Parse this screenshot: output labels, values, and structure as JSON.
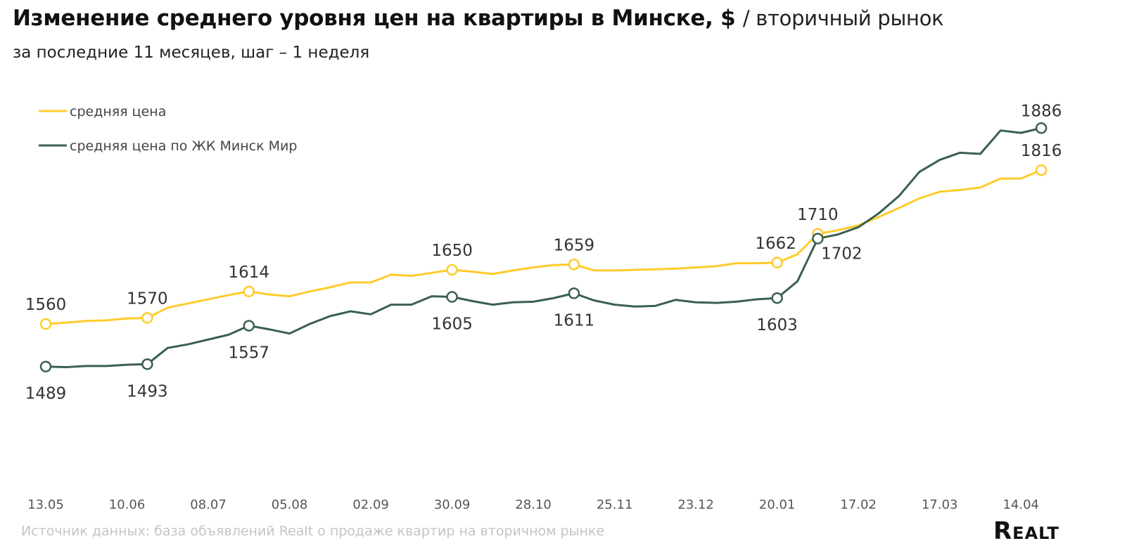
{
  "title": "Изменение среднего уровня цен на квартиры в Минске, $",
  "title_suffix": "/ вторичный рынок",
  "subtitle": "за последние 11 месяцев, шаг – 1 неделя",
  "source": "Источник данных: база объявлений Realt о продаже квартир на вторичном рынке",
  "logo": "Realt",
  "chart_data": {
    "type": "line",
    "grid": false,
    "legend_placement": "top-left",
    "x_ticks": [
      "13.05",
      "10.06",
      "08.07",
      "05.08",
      "02.09",
      "30.09",
      "28.10",
      "25.11",
      "23.12",
      "20.01",
      "17.02",
      "17.03",
      "14.04"
    ],
    "x_step": "1 неделя",
    "ylim": [
      1400,
      1900
    ],
    "series": [
      {
        "name": "средняя цена",
        "color": "#ffcb2b",
        "label_position": "above",
        "values": [
          1560,
          1562,
          1565,
          1566,
          1569,
          1570,
          1587,
          1594,
          1601,
          1608,
          1614,
          1609,
          1606,
          1614,
          1621,
          1629,
          1629,
          1642,
          1640,
          1645,
          1650,
          1647,
          1643,
          1649,
          1654,
          1658,
          1659,
          1649,
          1649,
          1650,
          1651,
          1652,
          1654,
          1656,
          1661,
          1661,
          1662,
          1676,
          1710,
          1716,
          1724,
          1738,
          1753,
          1769,
          1780,
          1783,
          1787,
          1802,
          1802,
          1816
        ],
        "labeled": [
          {
            "i": 0,
            "text": "1560"
          },
          {
            "i": 5,
            "text": "1570"
          },
          {
            "i": 10,
            "text": "1614"
          },
          {
            "i": 20,
            "text": "1650"
          },
          {
            "i": 26,
            "text": "1659"
          },
          {
            "i": 36,
            "text": "1662"
          },
          {
            "i": 38,
            "text": "1710"
          },
          {
            "i": 49,
            "text": "1816"
          }
        ]
      },
      {
        "name": "средняя цена по ЖК Минск Мир",
        "color": "#3a5f50",
        "label_position": "below",
        "values": [
          1489,
          1488,
          1490,
          1490,
          1492,
          1493,
          1520,
          1526,
          1534,
          1542,
          1557,
          1551,
          1544,
          1560,
          1573,
          1581,
          1576,
          1592,
          1592,
          1606,
          1605,
          1598,
          1592,
          1596,
          1597,
          1603,
          1611,
          1599,
          1592,
          1589,
          1590,
          1600,
          1596,
          1595,
          1597,
          1601,
          1603,
          1631,
          1702,
          1709,
          1721,
          1744,
          1773,
          1813,
          1833,
          1845,
          1843,
          1882,
          1878,
          1886
        ],
        "labeled": [
          {
            "i": 0,
            "text": "1489"
          },
          {
            "i": 5,
            "text": "1493"
          },
          {
            "i": 10,
            "text": "1557"
          },
          {
            "i": 20,
            "text": "1605"
          },
          {
            "i": 26,
            "text": "1611"
          },
          {
            "i": 36,
            "text": "1603"
          },
          {
            "i": 38,
            "text": "1702"
          },
          {
            "i": 49,
            "text": "1886"
          }
        ]
      }
    ]
  }
}
